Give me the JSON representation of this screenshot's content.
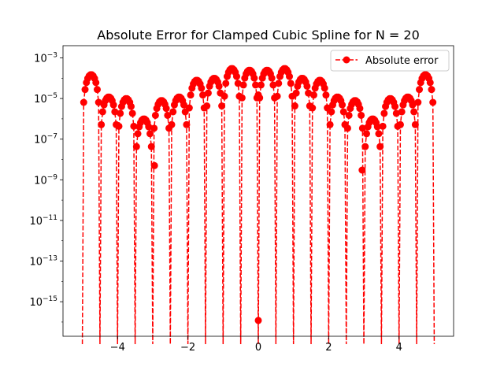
{
  "chart_data": {
    "type": "line",
    "title": "Absolute Error for Clamped Cubic Spline for N = 20",
    "xlabel": "",
    "ylabel": "",
    "xlim": [
      -5.55,
      5.55
    ],
    "yscale": "log",
    "ylim_log10": [
      -16.7,
      -2.4
    ],
    "xticks": [
      -4,
      -2,
      0,
      2,
      4
    ],
    "xtick_labels": [
      "−4",
      "−2",
      "0",
      "2",
      "4"
    ],
    "yticks_log10": [
      -3,
      -5,
      -7,
      -9,
      -11,
      -13,
      -15
    ],
    "ytick_labels": [
      {
        "base": "10",
        "exp": "−3"
      },
      {
        "base": "10",
        "exp": "−5"
      },
      {
        "base": "10",
        "exp": "−7"
      },
      {
        "base": "10",
        "exp": "−9"
      },
      {
        "base": "10",
        "exp": "−11"
      },
      {
        "base": "10",
        "exp": "−13"
      },
      {
        "base": "10",
        "exp": "−15"
      }
    ],
    "grid": false,
    "legend": {
      "position": "top-right",
      "entries": [
        "Absolute error"
      ]
    },
    "series": [
      {
        "name": "Absolute error",
        "color": "#ff0000",
        "linestyle": "dashed",
        "marker": "circle",
        "knots": [
          -5,
          -4.5,
          -4,
          -3.5,
          -3,
          -2.5,
          -2,
          -1.5,
          -1,
          -0.5,
          0,
          0.5,
          1,
          1.5,
          2,
          2.5,
          3,
          3.5,
          4,
          4.5,
          5
        ],
        "interval_peak_errors": [
          0.00015,
          1.2e-05,
          1e-05,
          1e-06,
          8e-06,
          1.2e-05,
          8e-05,
          0.0001,
          0.0003,
          0.00025,
          0.00025,
          0.0003,
          0.0001,
          8e-05,
          1.2e-05,
          8e-06,
          1e-06,
          1e-05,
          1.2e-05,
          0.00015
        ],
        "samples_per_interval": 13,
        "isolated_points": [
          {
            "x": -2.95,
            "y": 5e-09
          },
          {
            "x": 0.0,
            "y": 1.2e-16
          },
          {
            "x": 0.0,
            "y": 1.5e-05
          },
          {
            "x": 2.95,
            "y": 3e-09
          }
        ]
      }
    ]
  }
}
